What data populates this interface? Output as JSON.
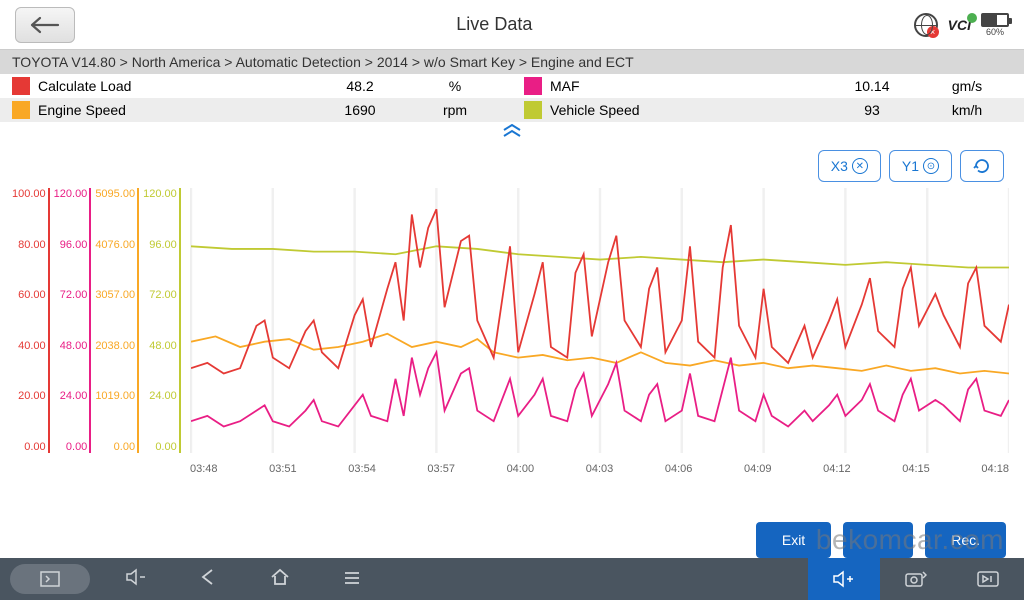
{
  "header": {
    "title": "Live Data",
    "battery_pct": "60%",
    "battery_fill_pct": 60,
    "vci_label": "VCI"
  },
  "breadcrumb": "TOYOTA V14.80 > North America  > Automatic Detection  > 2014  > w/o Smart Key  > Engine and ECT",
  "params": [
    {
      "label": "Calculate Load",
      "value": "48.2",
      "unit": "%",
      "color": "#e53935"
    },
    {
      "label": "MAF",
      "value": "10.14",
      "unit": "gm/s",
      "color": "#e91e85"
    },
    {
      "label": "Engine Speed",
      "value": "1690",
      "unit": "rpm",
      "color": "#f9a825"
    },
    {
      "label": "Vehicle Speed",
      "value": "93",
      "unit": "km/h",
      "color": "#c0ca33"
    }
  ],
  "controls": {
    "x_btn": "X3",
    "y_btn": "Y1"
  },
  "chart": {
    "y_scales": [
      {
        "color": "#e53935",
        "ticks": [
          "100.00",
          "80.00",
          "60.00",
          "40.00",
          "20.00",
          "0.00"
        ]
      },
      {
        "color": "#e91e85",
        "ticks": [
          "120.00",
          "96.00",
          "72.00",
          "48.00",
          "24.00",
          "0.00"
        ]
      },
      {
        "color": "#f9a825",
        "ticks": [
          "5095.00",
          "4076.00",
          "3057.00",
          "2038.00",
          "1019.00",
          "0.00"
        ]
      },
      {
        "color": "#c0ca33",
        "ticks": [
          "120.00",
          "96.00",
          "72.00",
          "48.00",
          "24.00",
          "0.00"
        ]
      }
    ],
    "x_ticks": [
      "03:48",
      "03:51",
      "03:54",
      "03:57",
      "04:00",
      "04:03",
      "04:06",
      "04:09",
      "04:12",
      "04:15",
      "04:18"
    ],
    "xlim": [
      0,
      100
    ],
    "ylim": [
      0,
      100
    ],
    "grid_color": "#f0f0f0",
    "line_width": 1.8,
    "series": {
      "vehicle_speed": {
        "color": "#c0ca33",
        "points": [
          [
            0,
            78
          ],
          [
            5,
            77
          ],
          [
            10,
            77
          ],
          [
            15,
            76
          ],
          [
            20,
            76
          ],
          [
            25,
            75
          ],
          [
            30,
            78
          ],
          [
            35,
            77
          ],
          [
            40,
            75
          ],
          [
            45,
            74
          ],
          [
            50,
            73
          ],
          [
            55,
            74
          ],
          [
            60,
            73
          ],
          [
            65,
            72
          ],
          [
            70,
            73
          ],
          [
            75,
            72
          ],
          [
            80,
            71
          ],
          [
            85,
            72
          ],
          [
            90,
            71
          ],
          [
            95,
            70
          ],
          [
            100,
            70
          ]
        ]
      },
      "engine_speed": {
        "color": "#f9a825",
        "points": [
          [
            0,
            42
          ],
          [
            3,
            44
          ],
          [
            6,
            40
          ],
          [
            9,
            42
          ],
          [
            12,
            43
          ],
          [
            15,
            39
          ],
          [
            18,
            40
          ],
          [
            21,
            42
          ],
          [
            24,
            45
          ],
          [
            27,
            40
          ],
          [
            30,
            42
          ],
          [
            33,
            40
          ],
          [
            35,
            43
          ],
          [
            37,
            38
          ],
          [
            40,
            36
          ],
          [
            43,
            37
          ],
          [
            46,
            35
          ],
          [
            49,
            36
          ],
          [
            52,
            34
          ],
          [
            55,
            38
          ],
          [
            58,
            34
          ],
          [
            61,
            33
          ],
          [
            64,
            35
          ],
          [
            67,
            33
          ],
          [
            70,
            34
          ],
          [
            73,
            32
          ],
          [
            76,
            33
          ],
          [
            79,
            32
          ],
          [
            82,
            31
          ],
          [
            85,
            33
          ],
          [
            88,
            31
          ],
          [
            91,
            32
          ],
          [
            94,
            30
          ],
          [
            97,
            31
          ],
          [
            100,
            30
          ]
        ]
      },
      "calculate_load": {
        "color": "#e53935",
        "points": [
          [
            0,
            32
          ],
          [
            2,
            34
          ],
          [
            4,
            30
          ],
          [
            6,
            32
          ],
          [
            8,
            48
          ],
          [
            9,
            50
          ],
          [
            10,
            36
          ],
          [
            12,
            32
          ],
          [
            14,
            46
          ],
          [
            15,
            50
          ],
          [
            16,
            38
          ],
          [
            18,
            32
          ],
          [
            20,
            52
          ],
          [
            21,
            58
          ],
          [
            22,
            40
          ],
          [
            24,
            62
          ],
          [
            25,
            72
          ],
          [
            26,
            50
          ],
          [
            27,
            90
          ],
          [
            28,
            70
          ],
          [
            29,
            85
          ],
          [
            30,
            92
          ],
          [
            31,
            55
          ],
          [
            33,
            80
          ],
          [
            34,
            82
          ],
          [
            35,
            50
          ],
          [
            37,
            36
          ],
          [
            39,
            78
          ],
          [
            40,
            38
          ],
          [
            42,
            60
          ],
          [
            43,
            72
          ],
          [
            44,
            40
          ],
          [
            46,
            36
          ],
          [
            47,
            68
          ],
          [
            48,
            75
          ],
          [
            49,
            44
          ],
          [
            51,
            72
          ],
          [
            52,
            82
          ],
          [
            53,
            50
          ],
          [
            55,
            40
          ],
          [
            56,
            62
          ],
          [
            57,
            70
          ],
          [
            58,
            38
          ],
          [
            60,
            50
          ],
          [
            61,
            78
          ],
          [
            62,
            42
          ],
          [
            64,
            36
          ],
          [
            65,
            70
          ],
          [
            66,
            86
          ],
          [
            67,
            48
          ],
          [
            69,
            36
          ],
          [
            70,
            62
          ],
          [
            71,
            40
          ],
          [
            73,
            34
          ],
          [
            75,
            48
          ],
          [
            76,
            36
          ],
          [
            78,
            50
          ],
          [
            79,
            58
          ],
          [
            80,
            40
          ],
          [
            82,
            56
          ],
          [
            83,
            66
          ],
          [
            84,
            46
          ],
          [
            86,
            40
          ],
          [
            87,
            62
          ],
          [
            88,
            70
          ],
          [
            89,
            48
          ],
          [
            91,
            60
          ],
          [
            92,
            52
          ],
          [
            94,
            40
          ],
          [
            95,
            64
          ],
          [
            96,
            70
          ],
          [
            97,
            48
          ],
          [
            99,
            42
          ],
          [
            100,
            56
          ]
        ]
      },
      "maf": {
        "color": "#e91e85",
        "points": [
          [
            0,
            12
          ],
          [
            2,
            14
          ],
          [
            4,
            10
          ],
          [
            6,
            12
          ],
          [
            8,
            16
          ],
          [
            9,
            18
          ],
          [
            10,
            12
          ],
          [
            12,
            10
          ],
          [
            14,
            16
          ],
          [
            15,
            20
          ],
          [
            16,
            12
          ],
          [
            18,
            10
          ],
          [
            20,
            18
          ],
          [
            21,
            22
          ],
          [
            22,
            14
          ],
          [
            24,
            12
          ],
          [
            25,
            28
          ],
          [
            26,
            14
          ],
          [
            27,
            36
          ],
          [
            28,
            22
          ],
          [
            29,
            32
          ],
          [
            30,
            38
          ],
          [
            31,
            16
          ],
          [
            33,
            30
          ],
          [
            34,
            32
          ],
          [
            35,
            16
          ],
          [
            37,
            12
          ],
          [
            39,
            28
          ],
          [
            40,
            14
          ],
          [
            42,
            22
          ],
          [
            43,
            28
          ],
          [
            44,
            14
          ],
          [
            46,
            12
          ],
          [
            47,
            24
          ],
          [
            48,
            30
          ],
          [
            49,
            14
          ],
          [
            51,
            26
          ],
          [
            52,
            34
          ],
          [
            53,
            16
          ],
          [
            55,
            12
          ],
          [
            56,
            22
          ],
          [
            57,
            26
          ],
          [
            58,
            12
          ],
          [
            60,
            16
          ],
          [
            61,
            30
          ],
          [
            62,
            14
          ],
          [
            64,
            12
          ],
          [
            65,
            24
          ],
          [
            66,
            36
          ],
          [
            67,
            16
          ],
          [
            69,
            12
          ],
          [
            70,
            22
          ],
          [
            71,
            14
          ],
          [
            73,
            10
          ],
          [
            75,
            16
          ],
          [
            76,
            12
          ],
          [
            78,
            18
          ],
          [
            79,
            22
          ],
          [
            80,
            14
          ],
          [
            82,
            20
          ],
          [
            83,
            26
          ],
          [
            84,
            16
          ],
          [
            86,
            12
          ],
          [
            87,
            22
          ],
          [
            88,
            28
          ],
          [
            89,
            16
          ],
          [
            91,
            20
          ],
          [
            92,
            18
          ],
          [
            94,
            12
          ],
          [
            95,
            24
          ],
          [
            96,
            28
          ],
          [
            97,
            16
          ],
          [
            99,
            14
          ],
          [
            100,
            20
          ]
        ]
      }
    }
  },
  "buttons": {
    "exit": "Exit",
    "btn2": "",
    "btn3": "Rec."
  },
  "watermark": "bekomcar.com"
}
